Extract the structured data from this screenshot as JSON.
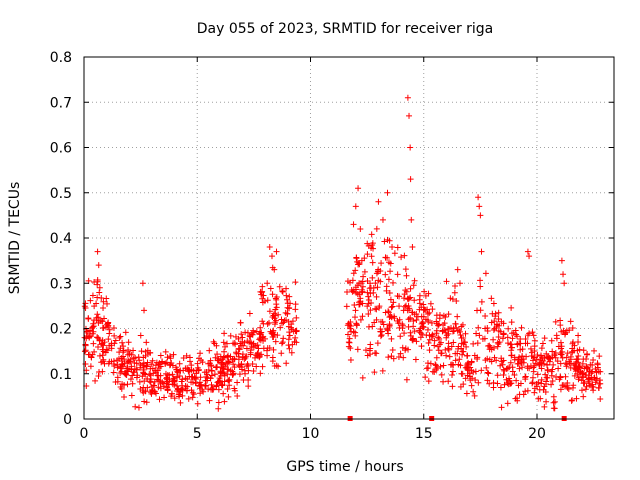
{
  "chart_data": {
    "type": "scatter",
    "title": "Day 055 of 2023, SRMTID for receiver riga",
    "xlabel": "GPS time / hours",
    "ylabel": "SRMTID / TECUs",
    "xlim": [
      0,
      23.4
    ],
    "ylim": [
      0,
      0.8
    ],
    "xticks": [
      0,
      5,
      10,
      15,
      20
    ],
    "yticks": [
      0,
      0.1,
      0.2,
      0.3,
      0.4,
      0.5,
      0.6,
      0.7,
      0.8
    ],
    "xtick_labels": [
      "0",
      "5",
      "10",
      "15",
      "20"
    ],
    "ytick_labels": [
      "0",
      "0.1",
      "0.2",
      "0.3",
      "0.4",
      "0.5",
      "0.6",
      "0.7",
      "0.8"
    ],
    "grid": true,
    "marker": "+",
    "series_color": "#ff0000",
    "baseline_markers_x": [
      11.75,
      15.35,
      21.2
    ],
    "envelope": [
      {
        "x": 0.0,
        "base": 0.17,
        "spread": 0.07
      },
      {
        "x": 0.5,
        "base": 0.2,
        "spread": 0.08
      },
      {
        "x": 1.0,
        "base": 0.18,
        "spread": 0.07
      },
      {
        "x": 1.5,
        "base": 0.12,
        "spread": 0.05
      },
      {
        "x": 2.5,
        "base": 0.1,
        "spread": 0.05
      },
      {
        "x": 3.5,
        "base": 0.09,
        "spread": 0.04
      },
      {
        "x": 4.5,
        "base": 0.085,
        "spread": 0.035
      },
      {
        "x": 5.5,
        "base": 0.09,
        "spread": 0.04
      },
      {
        "x": 6.5,
        "base": 0.12,
        "spread": 0.05
      },
      {
        "x": 7.5,
        "base": 0.15,
        "spread": 0.05
      },
      {
        "x": 8.0,
        "base": 0.2,
        "spread": 0.08
      },
      {
        "x": 8.5,
        "base": 0.22,
        "spread": 0.08
      },
      {
        "x": 9.0,
        "base": 0.2,
        "spread": 0.06
      },
      {
        "x": 9.4,
        "base": 0.2,
        "spread": 0.06
      },
      {
        "x": 11.7,
        "base": 0.24,
        "spread": 0.08
      },
      {
        "x": 12.5,
        "base": 0.27,
        "spread": 0.1
      },
      {
        "x": 13.5,
        "base": 0.26,
        "spread": 0.1
      },
      {
        "x": 14.5,
        "base": 0.22,
        "spread": 0.08
      },
      {
        "x": 15.5,
        "base": 0.18,
        "spread": 0.07
      },
      {
        "x": 16.5,
        "base": 0.17,
        "spread": 0.07
      },
      {
        "x": 17.0,
        "base": 0.1,
        "spread": 0.05
      },
      {
        "x": 17.5,
        "base": 0.2,
        "spread": 0.09
      },
      {
        "x": 18.5,
        "base": 0.14,
        "spread": 0.07
      },
      {
        "x": 19.5,
        "base": 0.12,
        "spread": 0.06
      },
      {
        "x": 20.5,
        "base": 0.11,
        "spread": 0.06
      },
      {
        "x": 21.2,
        "base": 0.15,
        "spread": 0.07
      },
      {
        "x": 22.0,
        "base": 0.1,
        "spread": 0.04
      },
      {
        "x": 22.8,
        "base": 0.09,
        "spread": 0.03
      }
    ],
    "data_gap": [
      9.4,
      11.6
    ],
    "peaks": [
      {
        "x": 0.6,
        "y": 0.37
      },
      {
        "x": 0.65,
        "y": 0.34
      },
      {
        "x": 0.7,
        "y": 0.29
      },
      {
        "x": 2.6,
        "y": 0.3
      },
      {
        "x": 2.65,
        "y": 0.24
      },
      {
        "x": 8.2,
        "y": 0.38
      },
      {
        "x": 8.3,
        "y": 0.36
      },
      {
        "x": 8.4,
        "y": 0.33
      },
      {
        "x": 8.5,
        "y": 0.37
      },
      {
        "x": 11.9,
        "y": 0.43
      },
      {
        "x": 12.0,
        "y": 0.47
      },
      {
        "x": 12.1,
        "y": 0.51
      },
      {
        "x": 12.2,
        "y": 0.42
      },
      {
        "x": 13.0,
        "y": 0.48
      },
      {
        "x": 13.2,
        "y": 0.44
      },
      {
        "x": 13.4,
        "y": 0.5
      },
      {
        "x": 13.6,
        "y": 0.38
      },
      {
        "x": 14.3,
        "y": 0.71
      },
      {
        "x": 14.35,
        "y": 0.67
      },
      {
        "x": 14.4,
        "y": 0.6
      },
      {
        "x": 14.42,
        "y": 0.53
      },
      {
        "x": 14.45,
        "y": 0.44
      },
      {
        "x": 14.5,
        "y": 0.38
      },
      {
        "x": 16.5,
        "y": 0.33
      },
      {
        "x": 16.6,
        "y": 0.3
      },
      {
        "x": 17.4,
        "y": 0.49
      },
      {
        "x": 17.45,
        "y": 0.47
      },
      {
        "x": 17.5,
        "y": 0.45
      },
      {
        "x": 17.55,
        "y": 0.37
      },
      {
        "x": 19.6,
        "y": 0.37
      },
      {
        "x": 19.65,
        "y": 0.36
      },
      {
        "x": 21.1,
        "y": 0.35
      },
      {
        "x": 21.15,
        "y": 0.32
      },
      {
        "x": 21.2,
        "y": 0.3
      }
    ]
  }
}
